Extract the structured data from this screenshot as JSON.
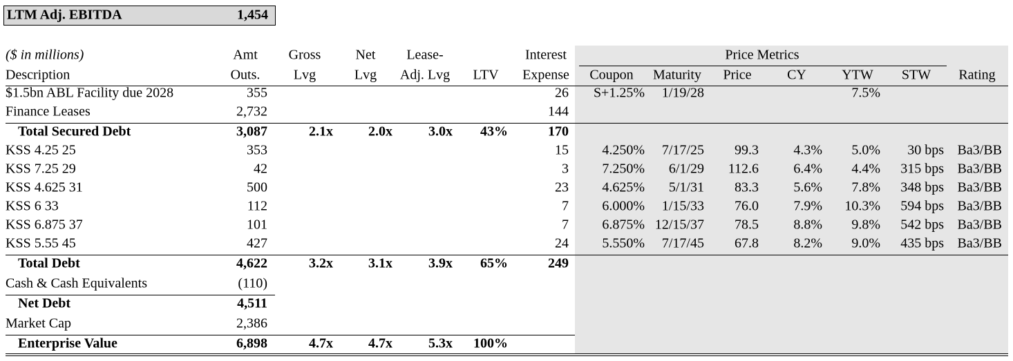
{
  "header_box": {
    "label": "LTM Adj. EBITDA",
    "value": "1,454"
  },
  "table": {
    "units_note": "($ in millions)",
    "group_header": "Price Metrics",
    "columns": [
      [
        "Description"
      ],
      [
        "Amt",
        "Outs."
      ],
      [
        "Gross",
        "Lvg"
      ],
      [
        "Net",
        "Lvg"
      ],
      [
        "Lease-",
        "Adj. Lvg"
      ],
      [
        "LTV"
      ],
      [
        "Interest",
        "Expense"
      ],
      [
        "Coupon"
      ],
      [
        "Maturity"
      ],
      [
        "Price"
      ],
      [
        "CY"
      ],
      [
        "YTW"
      ],
      [
        "STW"
      ],
      [
        "Rating"
      ]
    ],
    "rows": [
      {
        "total": false,
        "cells": [
          "$1.5bn ABL Facility due 2028",
          "355",
          null,
          null,
          null,
          null,
          "26",
          "S+1.25%",
          "1/19/28",
          null,
          null,
          "7.5%",
          null,
          null
        ]
      },
      {
        "total": false,
        "cells": [
          "Finance Leases",
          "2,732",
          null,
          null,
          null,
          null,
          "144",
          null,
          null,
          null,
          null,
          null,
          null,
          null
        ]
      },
      {
        "total": true,
        "cells": [
          "Total Secured Debt",
          "3,087",
          "2.1x",
          "2.0x",
          "3.0x",
          "43%",
          "170",
          null,
          null,
          null,
          null,
          null,
          null,
          null
        ]
      },
      {
        "total": false,
        "cells": [
          "KSS 4.25 25",
          "353",
          null,
          null,
          null,
          null,
          "15",
          "4.250%",
          "7/17/25",
          "99.3",
          "4.3%",
          "5.0%",
          "30 bps",
          "Ba3/BB"
        ]
      },
      {
        "total": false,
        "cells": [
          "KSS 7.25 29",
          "42",
          null,
          null,
          null,
          null,
          "3",
          "7.250%",
          "6/1/29",
          "112.6",
          "6.4%",
          "4.4%",
          "315 bps",
          "Ba3/BB"
        ]
      },
      {
        "total": false,
        "cells": [
          "KSS 4.625 31",
          "500",
          null,
          null,
          null,
          null,
          "23",
          "4.625%",
          "5/1/31",
          "83.3",
          "5.6%",
          "7.8%",
          "348 bps",
          "Ba3/BB"
        ]
      },
      {
        "total": false,
        "cells": [
          "KSS 6 33",
          "112",
          null,
          null,
          null,
          null,
          "7",
          "6.000%",
          "1/15/33",
          "76.0",
          "7.9%",
          "10.3%",
          "594 bps",
          "Ba3/BB"
        ]
      },
      {
        "total": false,
        "cells": [
          "KSS 6.875 37",
          "101",
          null,
          null,
          null,
          null,
          "7",
          "6.875%",
          "12/15/37",
          "78.5",
          "8.8%",
          "9.8%",
          "542 bps",
          "Ba3/BB"
        ]
      },
      {
        "total": false,
        "cells": [
          "KSS 5.55 45",
          "427",
          null,
          null,
          null,
          null,
          "24",
          "5.550%",
          "7/17/45",
          "67.8",
          "8.2%",
          "9.0%",
          "435 bps",
          "Ba3/BB"
        ]
      },
      {
        "total": true,
        "cells": [
          "Total Debt",
          "4,622",
          "3.2x",
          "3.1x",
          "3.9x",
          "65%",
          "249",
          null,
          null,
          null,
          null,
          null,
          null,
          null
        ]
      },
      {
        "total": false,
        "cells": [
          "Cash & Cash Equivalents",
          "(110)",
          null,
          null,
          null,
          null,
          null,
          null,
          null,
          null,
          null,
          null,
          null,
          null
        ]
      },
      {
        "total": true,
        "cells": [
          "Net Debt",
          "4,511",
          null,
          null,
          null,
          null,
          null,
          null,
          null,
          null,
          null,
          null,
          null,
          null
        ]
      },
      {
        "total": false,
        "cells": [
          "Market Cap",
          "2,386",
          null,
          null,
          null,
          null,
          null,
          null,
          null,
          null,
          null,
          null,
          null,
          null
        ]
      },
      {
        "total": true,
        "cells": [
          "Enterprise Value",
          "6,898",
          "4.7x",
          "4.7x",
          "5.3x",
          "100%",
          null,
          null,
          null,
          null,
          null,
          null,
          null,
          null
        ]
      }
    ]
  }
}
